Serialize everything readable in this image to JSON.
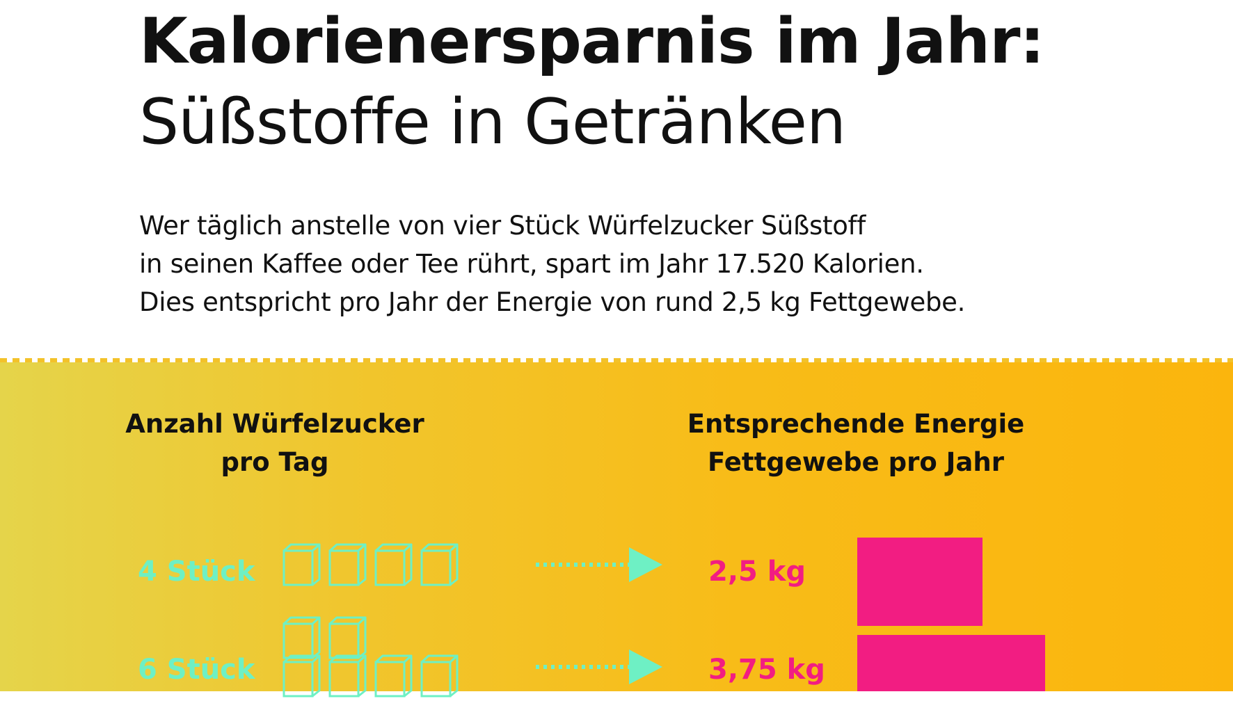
{
  "title": "Kalorienersparnis im Jahr:",
  "subtitle": "Süßstoffe in Getränken",
  "intro": [
    "Wer täglich anstelle von vier Stück Würfelzucker Süßstoff",
    "in seinen Kaffee oder Tee rührt, spart im Jahr 17.520 Kalorien.",
    "Dies entspricht pro Jahr der Energie von rund 2,5 kg Fettgewebe."
  ],
  "columns": {
    "left": [
      "Anzahl Würfelzucker",
      "pro Tag"
    ],
    "right": [
      "Entsprechende Energie",
      "Fettgewebe pro Jahr"
    ]
  },
  "rows": [
    {
      "label": "4 Stück",
      "cubes": 4,
      "value": "2,5 kg",
      "kg": 2.5
    },
    {
      "label": "6 Stück",
      "cubes": 6,
      "value": "3,75 kg",
      "kg": 3.75
    }
  ],
  "colors": {
    "cube": "#6ef0c4",
    "fat": "#f21d82",
    "label": "#6ef0c4",
    "value": "#f21d82"
  }
}
